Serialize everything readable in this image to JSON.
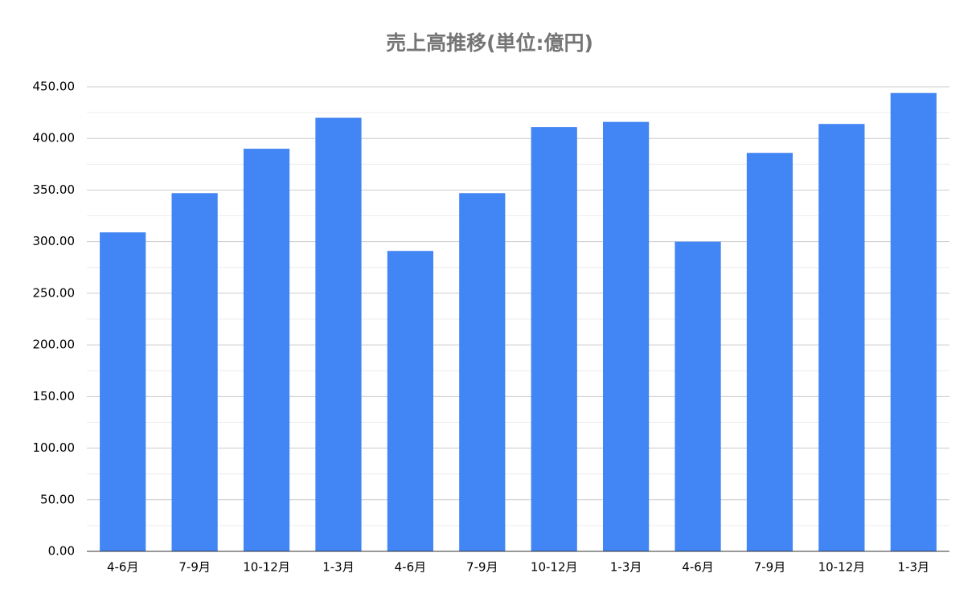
{
  "chart_data": {
    "type": "bar",
    "title": "売上高推移(単位:億円)",
    "categories": [
      "4-6月",
      "7-9月",
      "10-12月",
      "1-3月",
      "4-6月",
      "7-9月",
      "10-12月",
      "1-3月",
      "4-6月",
      "7-9月",
      "10-12月",
      "1-3月"
    ],
    "values": [
      309,
      347,
      390,
      420,
      291,
      347,
      411,
      416,
      300,
      386,
      414,
      444
    ],
    "color": "#4285f4",
    "ylim": [
      0,
      450
    ],
    "yticks": [
      {
        "value": 0,
        "label": "0.00"
      },
      {
        "value": 50,
        "label": "50.00"
      },
      {
        "value": 100,
        "label": "100.00"
      },
      {
        "value": 150,
        "label": "150.00"
      },
      {
        "value": 200,
        "label": "200.00"
      },
      {
        "value": 250,
        "label": "250.00"
      },
      {
        "value": 300,
        "label": "300.00"
      },
      {
        "value": 350,
        "label": "350.00"
      },
      {
        "value": 400,
        "label": "400.00"
      },
      {
        "value": 450,
        "label": "450.00"
      }
    ],
    "minor_yticks": [
      25,
      75,
      125,
      175,
      225,
      275,
      325,
      375,
      425
    ],
    "grid": true
  }
}
